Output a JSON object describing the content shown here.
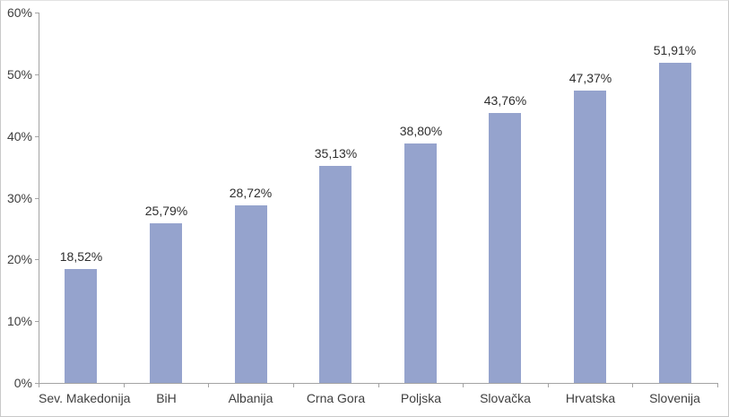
{
  "chart_data": {
    "type": "bar",
    "title": "",
    "xlabel": "",
    "ylabel": "",
    "categories": [
      "Sev. Makedonija",
      "BiH",
      "Albanija",
      "Crna Gora",
      "Poljska",
      "Slovačka",
      "Hrvatska",
      "Slovenija"
    ],
    "values": [
      18.52,
      25.79,
      28.72,
      35.13,
      38.8,
      43.76,
      47.37,
      51.91
    ],
    "value_labels": [
      "18,52%",
      "25,79%",
      "28,72%",
      "35,13%",
      "38,80%",
      "43,76%",
      "47,37%",
      "51,91%"
    ],
    "ylim": [
      0,
      60
    ],
    "y_tick_step": 10,
    "y_tick_labels": [
      "0%",
      "10%",
      "20%",
      "30%",
      "40%",
      "50%",
      "60%"
    ],
    "grid": false,
    "legend": "none",
    "colors": {
      "bar": "#95a3cd",
      "axis": "#a3a3a3",
      "text": "#3f3f3f",
      "background": "#ffffff",
      "frame_border": "#c9c9c9"
    }
  }
}
